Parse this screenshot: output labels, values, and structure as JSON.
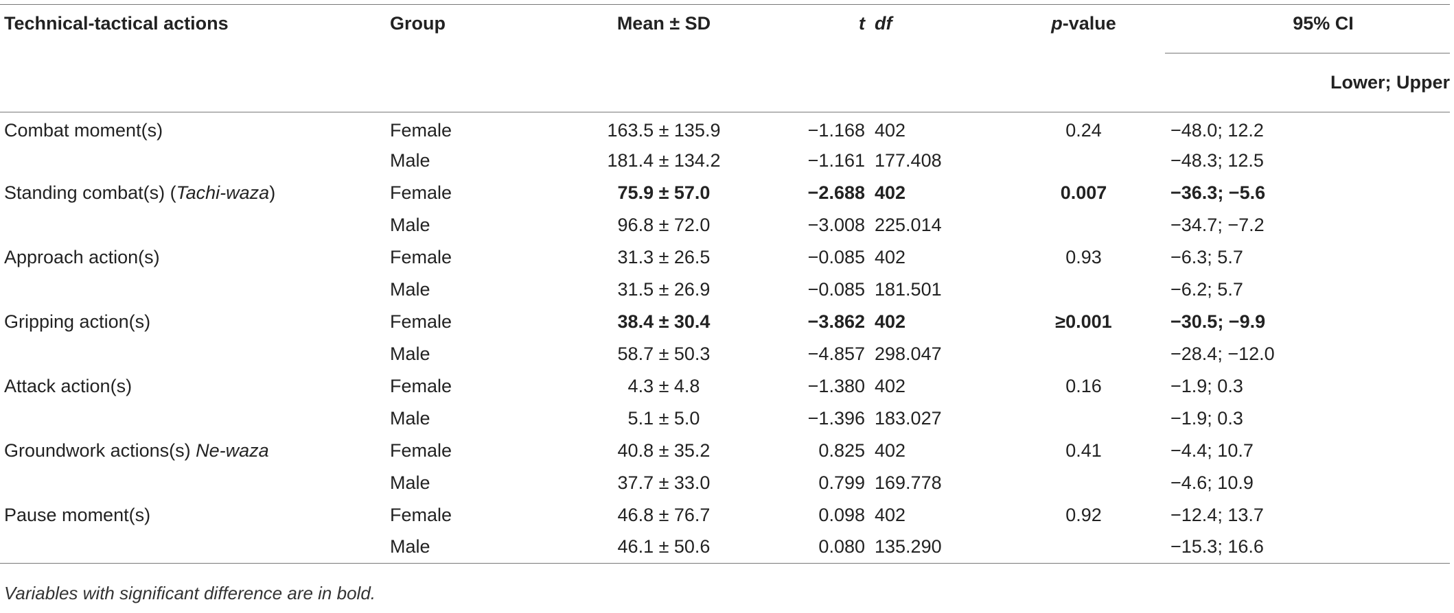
{
  "headers": {
    "col1": "Technical-tactical actions",
    "col2": "Group",
    "col3": "Mean ± SD",
    "col4": "t",
    "col5": "df",
    "col6_italic": "p",
    "col6_rest": "-value",
    "col7": "95% CI",
    "col7_sub": "Lower; Upper"
  },
  "rows": [
    {
      "action": "Combat moment(s)",
      "action_italic": "",
      "group": "Female",
      "mean_sd": "163.5 ± 135.9",
      "t": "−1.168",
      "df": "402",
      "p": "0.24",
      "ci": "−48.0; 12.2",
      "bold": false
    },
    {
      "action": "",
      "action_italic": "",
      "group": "Male",
      "mean_sd": "181.4 ± 134.2",
      "t": "−1.161",
      "df": "177.408",
      "p": "",
      "ci": "−48.3; 12.5",
      "bold": false
    },
    {
      "action": "Standing combat(s) (",
      "action_italic": "Tachi-waza",
      "action_suffix": ")",
      "group": "Female",
      "mean_sd": "75.9 ± 57.0",
      "t": "−2.688",
      "df": "402",
      "p": "0.007",
      "ci": "−36.3; −5.6",
      "bold": true
    },
    {
      "action": "",
      "action_italic": "",
      "group": "Male",
      "mean_sd": "96.8 ± 72.0",
      "t": "−3.008",
      "df": "225.014",
      "p": "",
      "ci": "−34.7; −7.2",
      "bold": false
    },
    {
      "action": "Approach action(s)",
      "action_italic": "",
      "group": "Female",
      "mean_sd": "31.3 ± 26.5",
      "t": "−0.085",
      "df": "402",
      "p": "0.93",
      "ci": "−6.3; 5.7",
      "bold": false
    },
    {
      "action": "",
      "action_italic": "",
      "group": "Male",
      "mean_sd": "31.5 ± 26.9",
      "t": "−0.085",
      "df": "181.501",
      "p": "",
      "ci": "−6.2; 5.7",
      "bold": false
    },
    {
      "action": "Gripping action(s)",
      "action_italic": "",
      "group": "Female",
      "mean_sd": "38.4 ± 30.4",
      "t": "−3.862",
      "df": "402",
      "p": "≥0.001",
      "ci": "−30.5; −9.9",
      "bold": true
    },
    {
      "action": "",
      "action_italic": "",
      "group": "Male",
      "mean_sd": "58.7 ± 50.3",
      "t": "−4.857",
      "df": "298.047",
      "p": "",
      "ci": "−28.4; −12.0",
      "bold": false
    },
    {
      "action": "Attack action(s)",
      "action_italic": "",
      "group": "Female",
      "mean_sd": "4.3 ± 4.8",
      "t": "−1.380",
      "df": "402",
      "p": "0.16",
      "ci": "−1.9; 0.3",
      "bold": false
    },
    {
      "action": "",
      "action_italic": "",
      "group": "Male",
      "mean_sd": "5.1 ± 5.0",
      "t": "−1.396",
      "df": "183.027",
      "p": "",
      "ci": "−1.9; 0.3",
      "bold": false
    },
    {
      "action": "Groundwork actions(s) ",
      "action_italic": "Ne-waza",
      "group": "Female",
      "mean_sd": "40.8 ± 35.2",
      "t": "0.825",
      "df": "402",
      "p": "0.41",
      "ci": "−4.4; 10.7",
      "bold": false
    },
    {
      "action": "",
      "action_italic": "",
      "group": "Male",
      "mean_sd": "37.7 ± 33.0",
      "t": "0.799",
      "df": "169.778",
      "p": "",
      "ci": "−4.6; 10.9",
      "bold": false
    },
    {
      "action": "Pause moment(s)",
      "action_italic": "",
      "group": "Female",
      "mean_sd": "46.8 ± 76.7",
      "t": "0.098",
      "df": "402",
      "p": "0.92",
      "ci": "−12.4; 13.7",
      "bold": false
    },
    {
      "action": "",
      "action_italic": "",
      "group": "Male",
      "mean_sd": "46.1 ± 50.6",
      "t": "0.080",
      "df": "135.290",
      "p": "",
      "ci": "−15.3; 16.6",
      "bold": false
    }
  ],
  "footnote": "Variables with significant difference are in bold."
}
